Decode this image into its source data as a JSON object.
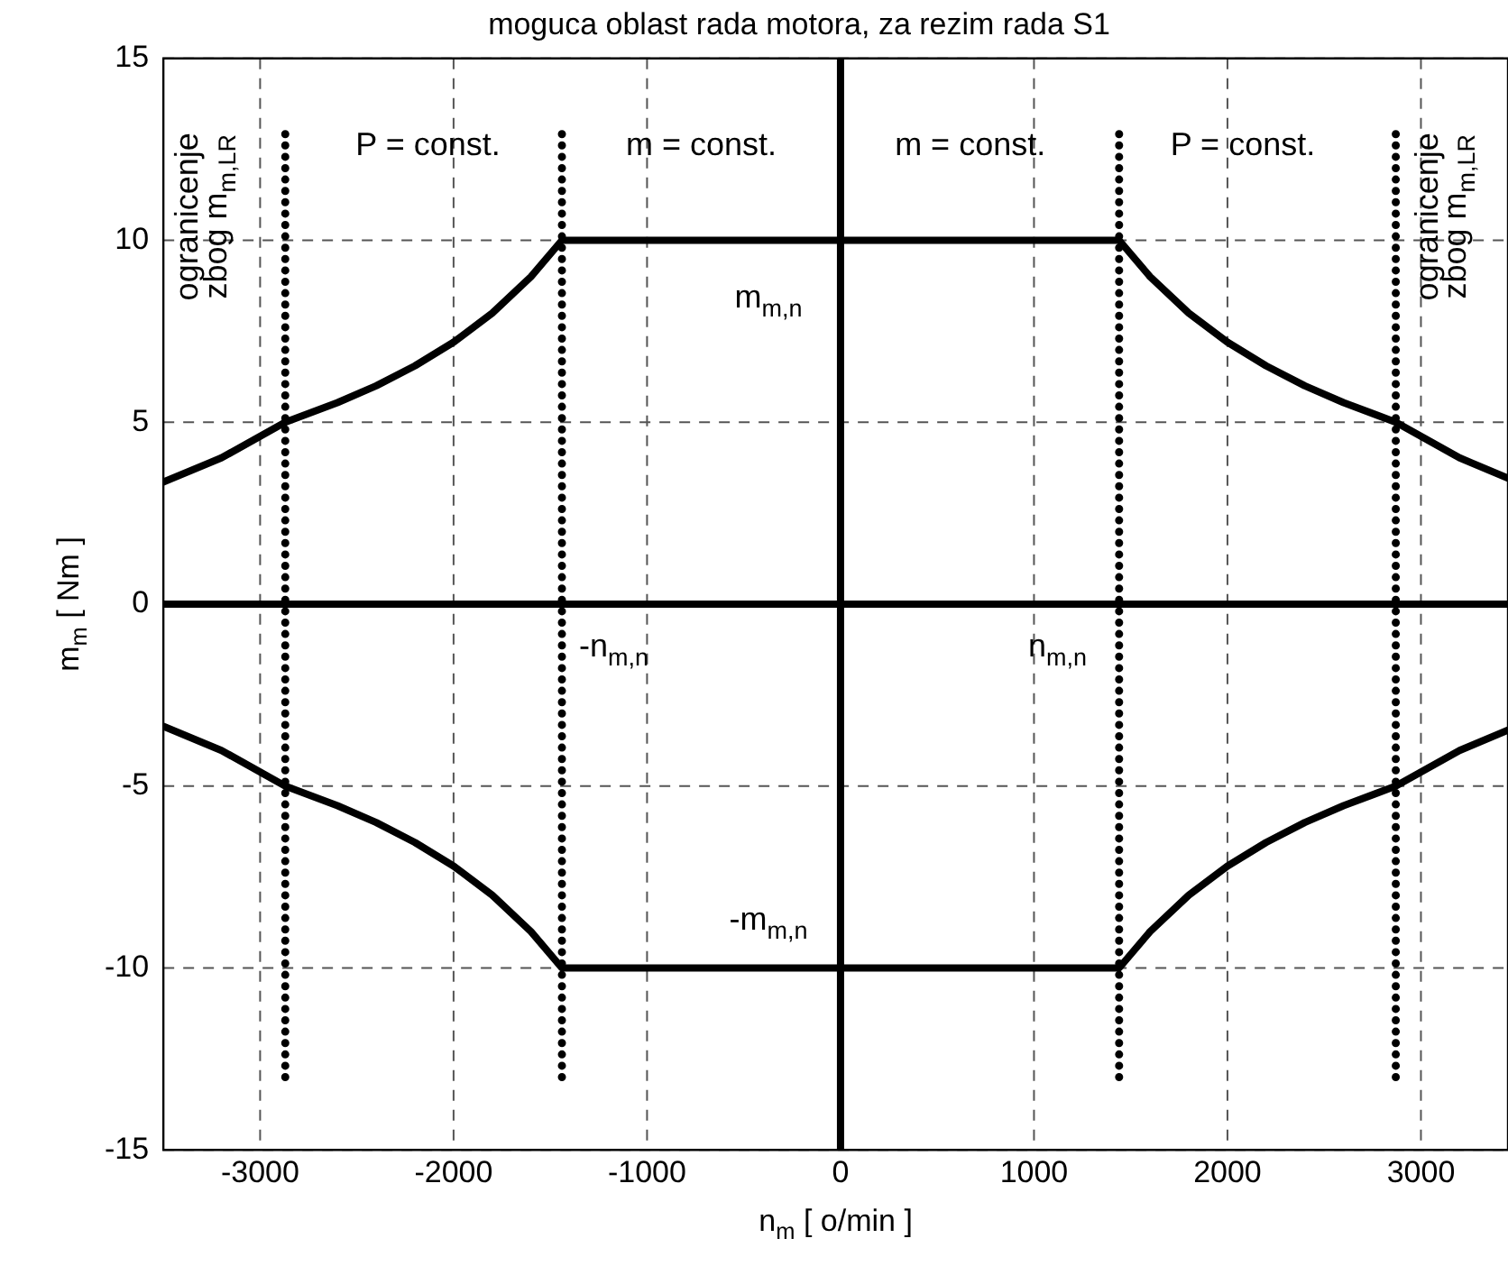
{
  "chart_data": {
    "type": "line",
    "title": "moguca oblast rada motora, za rezim rada S1",
    "xlabel": "n$_{m}$ [ o/min ]",
    "ylabel": "m$_{m}$ [ Nm ]",
    "xlim": [
      -3500,
      3450
    ],
    "ylim": [
      -15,
      15
    ],
    "xticks": [
      -3000,
      -2000,
      -1000,
      0,
      1000,
      2000,
      3000
    ],
    "yticks": [
      -15,
      -10,
      -5,
      0,
      5,
      10,
      15
    ],
    "grid": true,
    "legend": false,
    "marker": "none",
    "series": [
      {
        "color": "#000000",
        "x": [
          -3500,
          -3200,
          -2870,
          -2600,
          -2400,
          -2200,
          -2000,
          -1800,
          -1600,
          -1440,
          1440,
          1600,
          1800,
          2000,
          2200,
          2400,
          2600,
          2870,
          3200,
          3450
        ],
        "values": [
          3.36,
          4.02,
          5,
          5.54,
          6,
          6.55,
          7.2,
          8,
          9,
          10,
          10,
          9,
          8,
          7.2,
          6.55,
          6,
          5.54,
          5,
          4.02,
          3.46
        ]
      },
      {
        "color": "#000000",
        "x": [
          -3500,
          -3200,
          -2870,
          -2600,
          -2400,
          -2200,
          -2000,
          -1800,
          -1600,
          -1440,
          1440,
          1600,
          1800,
          2000,
          2200,
          2400,
          2600,
          2870,
          3200,
          3450
        ],
        "values": [
          -3.36,
          -4.02,
          -5,
          -5.54,
          -6,
          -6.55,
          -7.2,
          -8,
          -9,
          -10,
          -10,
          -9,
          -8,
          -7.2,
          -6.55,
          -6,
          -5.54,
          -5,
          -4.02,
          -3.46
        ]
      },
      {
        "color": "#000000",
        "line_style": "dotted",
        "x": [
          -2870,
          -2870
        ],
        "values": [
          -13,
          13
        ]
      },
      {
        "color": "#000000",
        "line_style": "dotted",
        "x": [
          -1440,
          -1440
        ],
        "values": [
          -13,
          13
        ]
      },
      {
        "color": "#000000",
        "line_style": "dotted",
        "x": [
          1440,
          1440
        ],
        "values": [
          -13,
          13
        ]
      },
      {
        "color": "#000000",
        "line_style": "dotted",
        "x": [
          2870,
          2870
        ],
        "values": [
          -13,
          13
        ]
      },
      {
        "color": "#000000",
        "x": [
          -3500,
          3450
        ],
        "values": [
          0,
          0
        ]
      },
      {
        "color": "#000000",
        "x": [
          0,
          0
        ],
        "values": [
          -15,
          15
        ]
      }
    ],
    "annotations": [
      "P = const.",
      "m = const.",
      "m = const.",
      "P = const.",
      "m$_{m,n}$",
      "-m$_{m,n}$",
      "-n$_{m,n}$",
      "n$_{m,n}$",
      "ogranicenje",
      "zbog m$_{m,LR}$",
      "ogranicenje",
      "zbog m$_{m,LR}$"
    ]
  }
}
